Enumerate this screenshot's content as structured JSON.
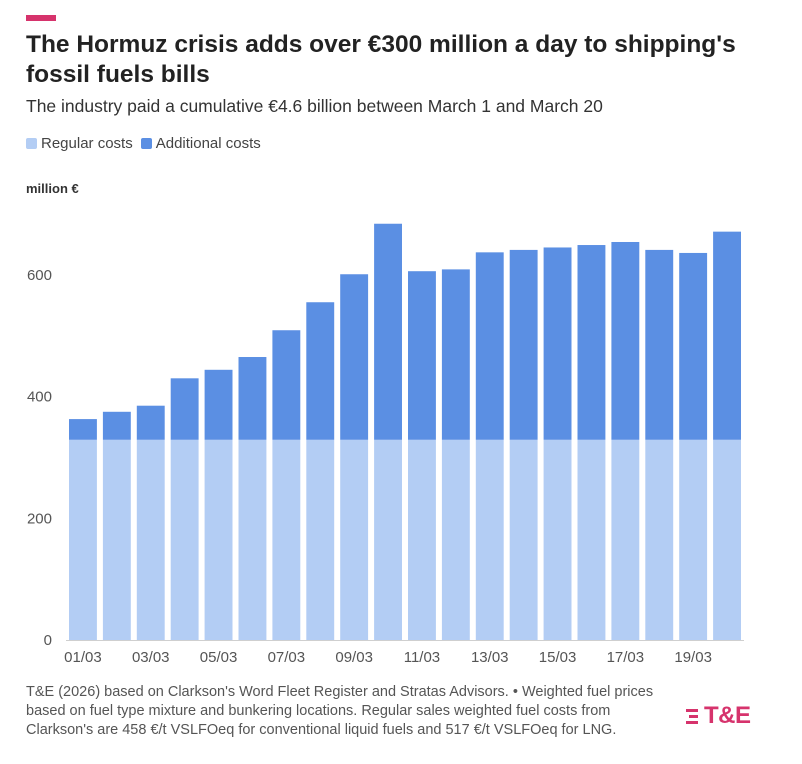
{
  "header": {
    "title": "The Hormuz crisis adds over €300 million a day to shipping's fossil fuels bills",
    "subtitle": "The industry paid a cumulative €4.6 billion between March 1 and March 20"
  },
  "legend": {
    "regular": "Regular costs",
    "additional": "Additional costs"
  },
  "colors": {
    "regular": "#b3cdf4",
    "additional": "#5b8fe3",
    "accent": "#d6336c"
  },
  "footer": {
    "source": "T&E (2026) based on Clarkson's Word Fleet Register and Stratas Advisors. • Weighted fuel prices based on fuel type mixture and bunkering locations. Regular sales weighted fuel costs from Clarkson's are 458 €/t VSLFOeq for conventional liquid fuels and 517 €/t VSLFOeq for LNG.",
    "logo_text": "T&E"
  },
  "chart_data": {
    "type": "bar",
    "stacked": true,
    "ylabel": "million €",
    "ylim": [
      0,
      700
    ],
    "yticks": [
      0,
      200,
      400,
      600
    ],
    "categories": [
      "01/03",
      "02/03",
      "03/03",
      "04/03",
      "05/03",
      "06/03",
      "07/03",
      "08/03",
      "09/03",
      "10/03",
      "11/03",
      "12/03",
      "13/03",
      "14/03",
      "15/03",
      "16/03",
      "17/03",
      "18/03",
      "19/03",
      "20/03"
    ],
    "xtick_labels": [
      "01/03",
      "",
      "03/03",
      "",
      "05/03",
      "",
      "07/03",
      "",
      "09/03",
      "",
      "11/03",
      "",
      "13/03",
      "",
      "15/03",
      "",
      "17/03",
      "",
      "19/03",
      ""
    ],
    "series": [
      {
        "name": "Regular costs",
        "values": [
          329,
          329,
          329,
          329,
          329,
          329,
          329,
          329,
          329,
          329,
          329,
          329,
          329,
          329,
          329,
          329,
          329,
          329,
          329,
          329
        ]
      },
      {
        "name": "Additional costs",
        "values": [
          34,
          46,
          56,
          101,
          115,
          136,
          180,
          226,
          272,
          355,
          277,
          280,
          308,
          312,
          316,
          320,
          325,
          312,
          307,
          342
        ]
      }
    ]
  }
}
